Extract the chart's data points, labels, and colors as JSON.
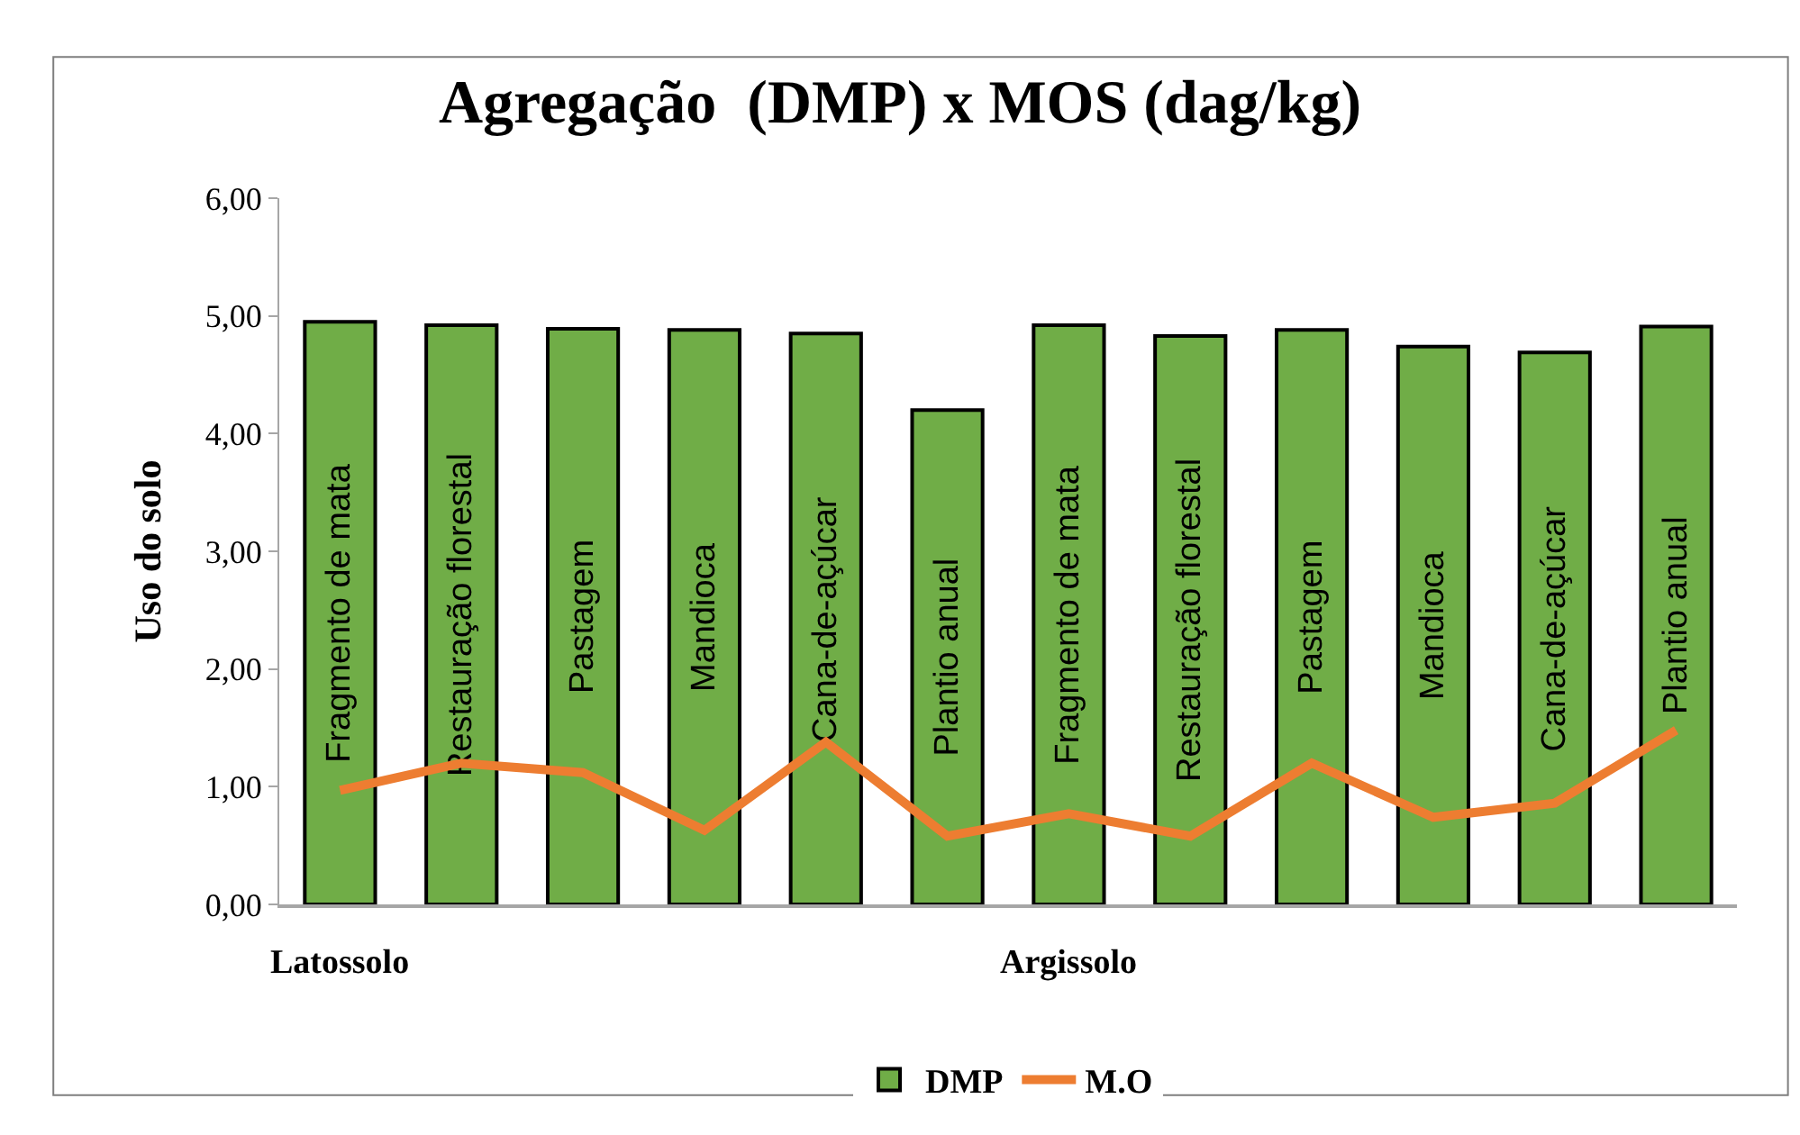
{
  "chart_data": {
    "type": "bar",
    "title": "Agregação  (DMP) x MOS (dag/kg)",
    "ylabel": "Uso do solo",
    "categories": [
      "Fragmento de mata",
      "Restauração florestal",
      "Pastagem",
      "Mandioca",
      "Cana-de-açúcar",
      "Plantio anual",
      "Fragmento de mata",
      "Restauração florestal",
      "Pastagem",
      "Mandioca",
      "Cana-de-açúcar",
      "Plantio anual"
    ],
    "series": [
      {
        "name": "DMP",
        "color": "#70ad47",
        "values": [
          4.95,
          4.92,
          4.89,
          4.88,
          4.85,
          4.2,
          4.92,
          4.83,
          4.88,
          4.74,
          4.69,
          4.91
        ]
      },
      {
        "name": "M.O",
        "type": "line",
        "color": "#ed7d31",
        "values": [
          0.97,
          1.2,
          1.12,
          0.63,
          1.38,
          0.58,
          0.77,
          0.58,
          1.2,
          0.74,
          0.86,
          1.48
        ]
      }
    ],
    "annotations": [
      "Latossolo",
      "Argissolo"
    ],
    "ylim": [
      0,
      6
    ],
    "yticks": [
      {
        "value": 0,
        "label": "0,00"
      },
      {
        "value": 1,
        "label": "1,00"
      },
      {
        "value": 2,
        "label": "2,00"
      },
      {
        "value": 3,
        "label": "3,00"
      },
      {
        "value": 4,
        "label": "4,00"
      },
      {
        "value": 5,
        "label": "5,00"
      },
      {
        "value": 6,
        "label": "6,00"
      }
    ],
    "grid": false,
    "legend": "bottom",
    "marker": "none",
    "line_style": "solid"
  }
}
